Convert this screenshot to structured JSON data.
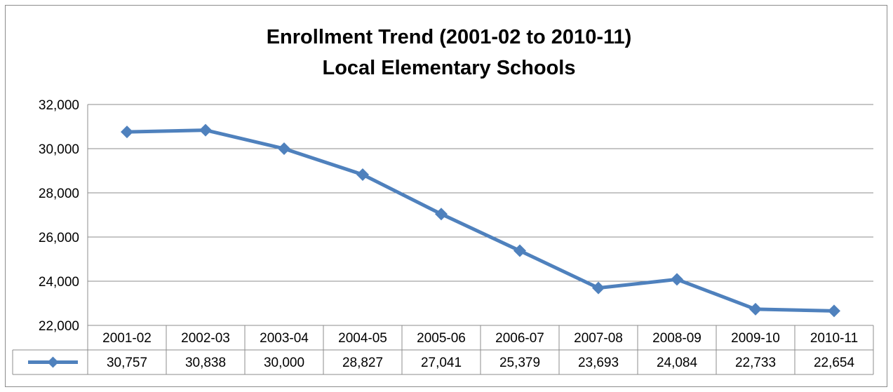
{
  "chart_data": {
    "type": "line",
    "title": "Enrollment Trend (2001-02 to 2010-11)",
    "subtitle": "Local Elementary Schools",
    "categories": [
      "2001-02",
      "2002-03",
      "2003-04",
      "2004-05",
      "2005-06",
      "2006-07",
      "2007-08",
      "2008-09",
      "2009-10",
      "2010-11"
    ],
    "series": [
      {
        "values": [
          30757,
          30838,
          30000,
          28827,
          27041,
          25379,
          23693,
          24084,
          22733,
          22654
        ],
        "value_labels": [
          "30,757",
          "30,838",
          "30,000",
          "28,827",
          "27,041",
          "25,379",
          "23,693",
          "24,084",
          "22,733",
          "22,654"
        ],
        "color": "#4f81bd",
        "marker": "diamond"
      }
    ],
    "ylim": [
      22000,
      32000
    ],
    "y_ticks": [
      22000,
      24000,
      26000,
      28000,
      30000,
      32000
    ],
    "y_tick_labels": [
      "22,000",
      "24,000",
      "26,000",
      "28,000",
      "30,000",
      "32,000"
    ],
    "grid": true,
    "data_table": true
  }
}
